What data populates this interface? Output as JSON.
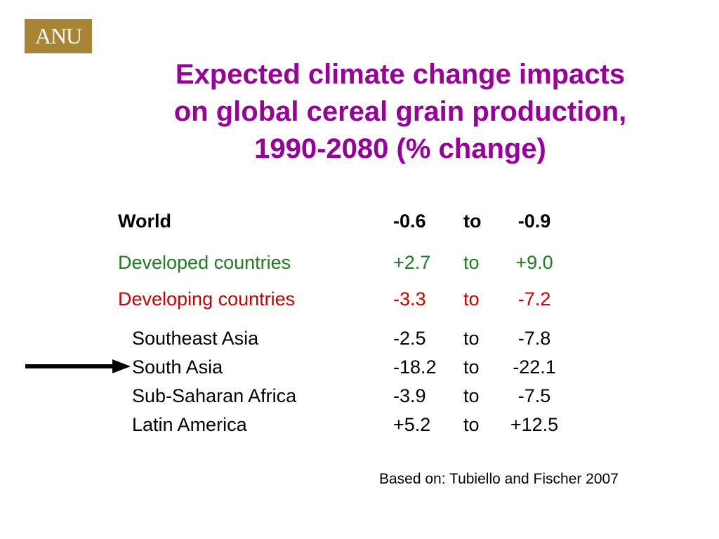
{
  "logo": {
    "text": "ANU",
    "color": "#a88434"
  },
  "title": {
    "lines": [
      "Expected climate change impacts",
      "on global cereal grain production,",
      "1990-2080 (% change)"
    ],
    "color": "#990099"
  },
  "table": {
    "rows": [
      {
        "label": "World",
        "from": "-0.6",
        "to": "to",
        "end": "-0.9",
        "color": "#000000",
        "style": "bold"
      },
      {
        "label": "Developed countries",
        "from": "+2.7",
        "to": "to",
        "end": "+9.0",
        "color": "#1e7d1e"
      },
      {
        "label": "Developing countries",
        "from": "-3.3",
        "to": "to",
        "end": "-7.2",
        "color": "#cc0000"
      },
      {
        "label": "Southeast Asia",
        "from": "-2.5",
        "to": "to",
        "end": "-7.8",
        "color": "#000000"
      },
      {
        "label": "South Asia",
        "from": "-18.2",
        "to": "to",
        "end": "-22.1",
        "color": "#000000",
        "marked": true
      },
      {
        "label": "Sub-Saharan Africa",
        "from": "-3.9",
        "to": "to",
        "end": "-7.5",
        "color": "#000000"
      },
      {
        "label": "Latin America",
        "from": "+5.2",
        "to": "to",
        "end": "+12.5",
        "color": "#000000"
      }
    ]
  },
  "icons": {
    "arrow": "right-arrow-icon"
  },
  "source": "Based on: Tubiello and Fischer 2007"
}
